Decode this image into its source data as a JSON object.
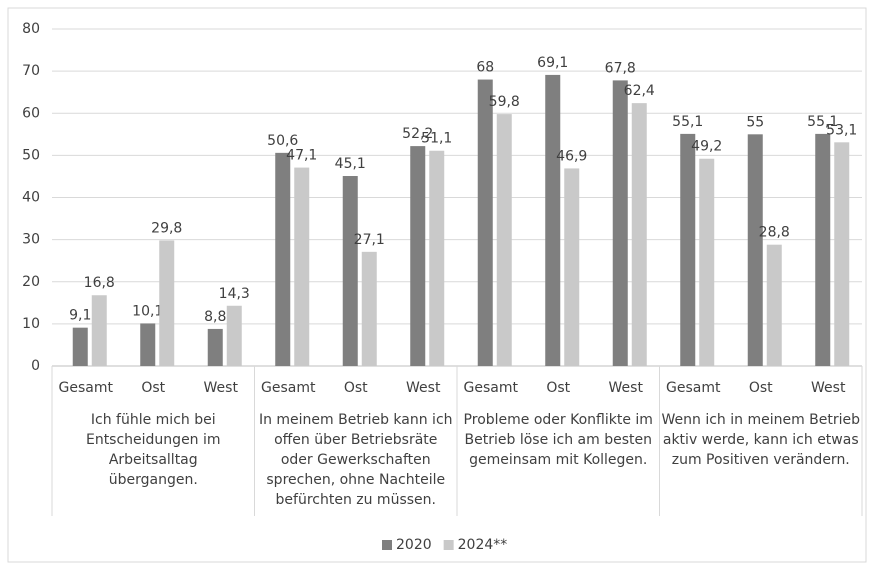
{
  "chart_data": {
    "type": "bar",
    "categories": [
      "Gesamt",
      "Ost",
      "West",
      "Gesamt",
      "Ost",
      "West",
      "Gesamt",
      "Ost",
      "West",
      "Gesamt",
      "Ost",
      "West"
    ],
    "groups": [
      "Ich fühle mich bei Entscheidungen im Arbeitsalltag übergangen.",
      "In meinem Betrieb kann ich offen über Betriebsräte oder Gewerkschaften sprechen, ohne Nachteile befürchten zu müssen.",
      "Probleme oder Konflikte im Betrieb löse ich am besten gemeinsam mit Kollegen.",
      "Wenn ich in meinem Betrieb aktiv werde, kann ich etwas zum Positiven verändern."
    ],
    "series": [
      {
        "name": "2020",
        "color": "#7f7f7f",
        "values": [
          9.1,
          10.1,
          8.8,
          50.6,
          45.1,
          52.2,
          68,
          69.1,
          67.8,
          55.1,
          55,
          55.1
        ],
        "value_labels": [
          "9,1",
          "10,1",
          "8,8",
          "50,6",
          "45,1",
          "52,2",
          "68",
          "69,1",
          "67,8",
          "55,1",
          "55",
          "55,1"
        ]
      },
      {
        "name": "2024**",
        "color": "#c9c9c9",
        "values": [
          16.8,
          29.8,
          14.3,
          47.1,
          27.1,
          51.1,
          59.8,
          46.9,
          62.4,
          49.2,
          28.8,
          53.1
        ],
        "value_labels": [
          "16,8",
          "29,8",
          "14,3",
          "47,1",
          "27,1",
          "51,1",
          "59,8",
          "46,9",
          "62,4",
          "49,2",
          "28,8",
          "53,1"
        ]
      }
    ],
    "ylim": [
      0,
      80
    ],
    "yticks": [
      0,
      10,
      20,
      30,
      40,
      50,
      60,
      70,
      80
    ],
    "grid": true,
    "legend": "bottom"
  }
}
